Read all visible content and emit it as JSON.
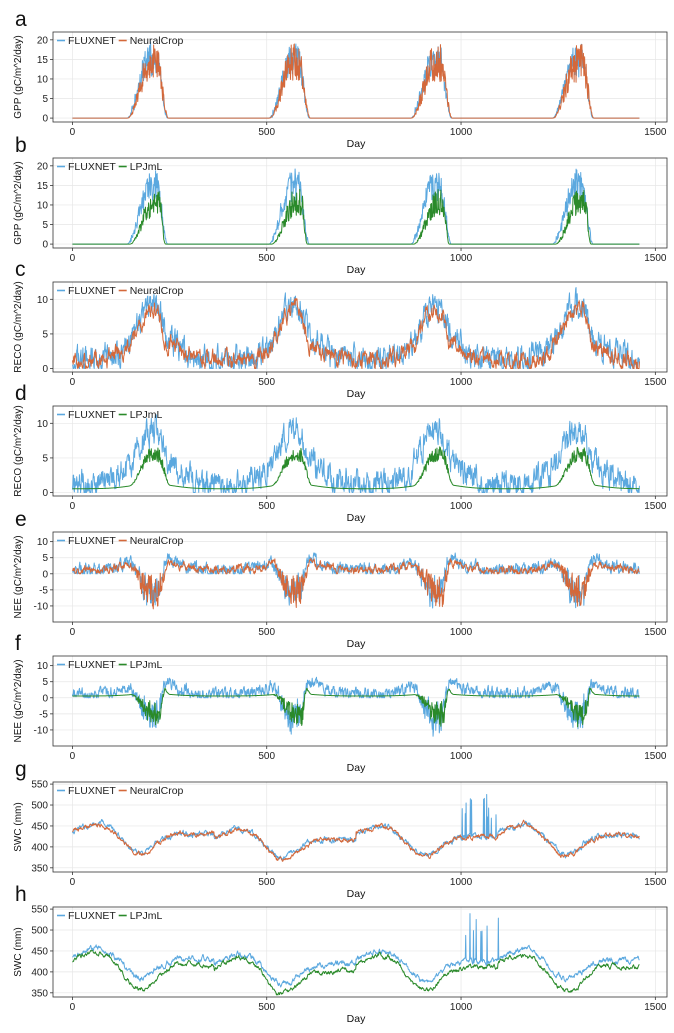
{
  "colors": {
    "fluxnet": "#5BA8DF",
    "neuralcrop": "#D4683A",
    "lpjml": "#2A8A2A"
  },
  "chart_data": [
    {
      "panel": "a",
      "type": "line",
      "title": "",
      "xlabel": "Day",
      "ylabel": "GPP (gC/m^2/day)",
      "xlim": [
        -50,
        1530
      ],
      "ylim": [
        -1,
        22
      ],
      "xticks": [
        0,
        500,
        1000,
        1500
      ],
      "yticks": [
        0,
        5,
        10,
        15,
        20
      ],
      "legend_position": "top-left",
      "variable": "gpp",
      "series": [
        {
          "name": "FLUXNET",
          "color_key": "fluxnet"
        },
        {
          "name": "NeuralCrop",
          "color_key": "neuralcrop"
        }
      ]
    },
    {
      "panel": "b",
      "type": "line",
      "title": "",
      "xlabel": "Day",
      "ylabel": "GPP (gC/m^2/day)",
      "xlim": [
        -50,
        1530
      ],
      "ylim": [
        -1,
        22
      ],
      "xticks": [
        0,
        500,
        1000,
        1500
      ],
      "yticks": [
        0,
        5,
        10,
        15,
        20
      ],
      "legend_position": "top-left",
      "variable": "gpp",
      "series": [
        {
          "name": "FLUXNET",
          "color_key": "fluxnet"
        },
        {
          "name": "LPJmL",
          "color_key": "lpjml"
        }
      ]
    },
    {
      "panel": "c",
      "type": "line",
      "title": "",
      "xlabel": "Day",
      "ylabel": "RECO (gC/m^2/day)",
      "xlim": [
        -50,
        1530
      ],
      "ylim": [
        -0.5,
        12.5
      ],
      "xticks": [
        0,
        500,
        1000,
        1500
      ],
      "yticks": [
        0,
        5,
        10
      ],
      "legend_position": "top-left",
      "variable": "reco",
      "series": [
        {
          "name": "FLUXNET",
          "color_key": "fluxnet"
        },
        {
          "name": "NeuralCrop",
          "color_key": "neuralcrop"
        }
      ]
    },
    {
      "panel": "d",
      "type": "line",
      "title": "",
      "xlabel": "Day",
      "ylabel": "RECO (gC/m^2/day)",
      "xlim": [
        -50,
        1530
      ],
      "ylim": [
        -0.5,
        12.5
      ],
      "xticks": [
        0,
        500,
        1000,
        1500
      ],
      "yticks": [
        0,
        5,
        10
      ],
      "legend_position": "top-left",
      "variable": "reco",
      "series": [
        {
          "name": "FLUXNET",
          "color_key": "fluxnet"
        },
        {
          "name": "LPJmL",
          "color_key": "lpjml"
        }
      ]
    },
    {
      "panel": "e",
      "type": "line",
      "title": "",
      "xlabel": "Day",
      "ylabel": "NEE (gC/m^2/day)",
      "xlim": [
        -50,
        1530
      ],
      "ylim": [
        -15,
        13
      ],
      "xticks": [
        0,
        500,
        1000,
        1500
      ],
      "yticks": [
        -10,
        -5,
        0,
        5,
        10
      ],
      "legend_position": "top-left",
      "variable": "nee",
      "series": [
        {
          "name": "FLUXNET",
          "color_key": "fluxnet"
        },
        {
          "name": "NeuralCrop",
          "color_key": "neuralcrop"
        }
      ]
    },
    {
      "panel": "f",
      "type": "line",
      "title": "",
      "xlabel": "Day",
      "ylabel": "NEE (gC/m^2/day)",
      "xlim": [
        -50,
        1530
      ],
      "ylim": [
        -15,
        13
      ],
      "xticks": [
        0,
        500,
        1000,
        1500
      ],
      "yticks": [
        -10,
        -5,
        0,
        5,
        10
      ],
      "legend_position": "top-left",
      "variable": "nee",
      "series": [
        {
          "name": "FLUXNET",
          "color_key": "fluxnet"
        },
        {
          "name": "LPJmL",
          "color_key": "lpjml"
        }
      ]
    },
    {
      "panel": "g",
      "type": "line",
      "title": "",
      "xlabel": "Day",
      "ylabel": "SWC (mm)",
      "xlim": [
        -50,
        1530
      ],
      "ylim": [
        340,
        555
      ],
      "xticks": [
        0,
        500,
        1000,
        1500
      ],
      "yticks": [
        350,
        400,
        450,
        500,
        550
      ],
      "legend_position": "top-left",
      "variable": "swc",
      "series": [
        {
          "name": "FLUXNET",
          "color_key": "fluxnet"
        },
        {
          "name": "NeuralCrop",
          "color_key": "neuralcrop"
        }
      ]
    },
    {
      "panel": "h",
      "type": "line",
      "title": "",
      "xlabel": "Day",
      "ylabel": "SWC (mm)",
      "xlim": [
        -50,
        1530
      ],
      "ylim": [
        340,
        555
      ],
      "xticks": [
        0,
        500,
        1000,
        1500
      ],
      "yticks": [
        350,
        400,
        450,
        500,
        550
      ],
      "legend_position": "top-left",
      "variable": "swc",
      "series": [
        {
          "name": "FLUXNET",
          "color_key": "fluxnet"
        },
        {
          "name": "LPJmL",
          "color_key": "lpjml"
        }
      ]
    }
  ]
}
